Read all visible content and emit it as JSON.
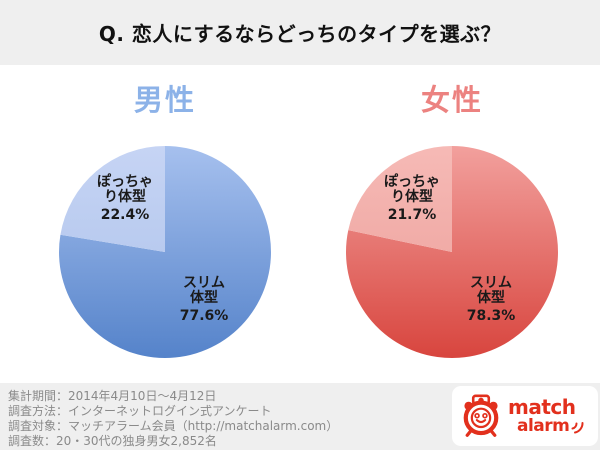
{
  "title": "Q. 恋人にするならどっちのタイプを選ぶ？",
  "chart_data": [
    {
      "type": "pie",
      "title": "男性",
      "title_color": "#8cb2e8",
      "start_angle_deg": 0,
      "direction": "clockwise",
      "legend": "none",
      "categories": [
        "スリム体型",
        "ぽっちゃり体型"
      ],
      "values": [
        77.6,
        22.4
      ],
      "slices": [
        {
          "key": "slim",
          "label": "スリム体型",
          "label_lines": [
            "スリム",
            "体型"
          ],
          "value": 77.6,
          "percent_label": "77.6%",
          "color_top": "#a6c0ee",
          "color_bottom": "#5583ca"
        },
        {
          "key": "chubby",
          "label": "ぽっちゃり体型",
          "label_lines": [
            "ぽっちゃ",
            "り体型"
          ],
          "value": 22.4,
          "percent_label": "22.4%",
          "color_top": "#c6d4f4",
          "color_bottom": "#abc1ea"
        }
      ]
    },
    {
      "type": "pie",
      "title": "女性",
      "title_color": "#ec8280",
      "start_angle_deg": 0,
      "direction": "clockwise",
      "legend": "none",
      "categories": [
        "スリム体型",
        "ぽっちゃり体型"
      ],
      "values": [
        78.3,
        21.7
      ],
      "slices": [
        {
          "key": "slim",
          "label": "スリム体型",
          "label_lines": [
            "スリム",
            "体型"
          ],
          "value": 78.3,
          "percent_label": "78.3%",
          "color_top": "#f2a09d",
          "color_bottom": "#d8453e"
        },
        {
          "key": "chubby",
          "label": "ぽっちゃり体型",
          "label_lines": [
            "ぽっちゃ",
            "り体型"
          ],
          "value": 21.7,
          "percent_label": "21.7%",
          "color_top": "#f6bab6",
          "color_bottom": "#eb9c97"
        }
      ]
    }
  ],
  "footer": {
    "survey_lines": [
      "集計期間：2014年4月10日〜4月12日",
      "調査方法：インターネットログイン式アンケート",
      "調査対象：マッチアラーム会員（http://matchalarm.com）",
      "調査数：20・30代の独身男女2,852名"
    ],
    "logo": {
      "line1": "match",
      "line2": "alarm",
      "color": "#e2301d"
    }
  },
  "colors": {
    "band_bg": "#efefef",
    "main_bg": "#ffffff",
    "title_text": "#111111",
    "label_text": "#1a1a1a",
    "footer_text": "#8a8a8a"
  }
}
